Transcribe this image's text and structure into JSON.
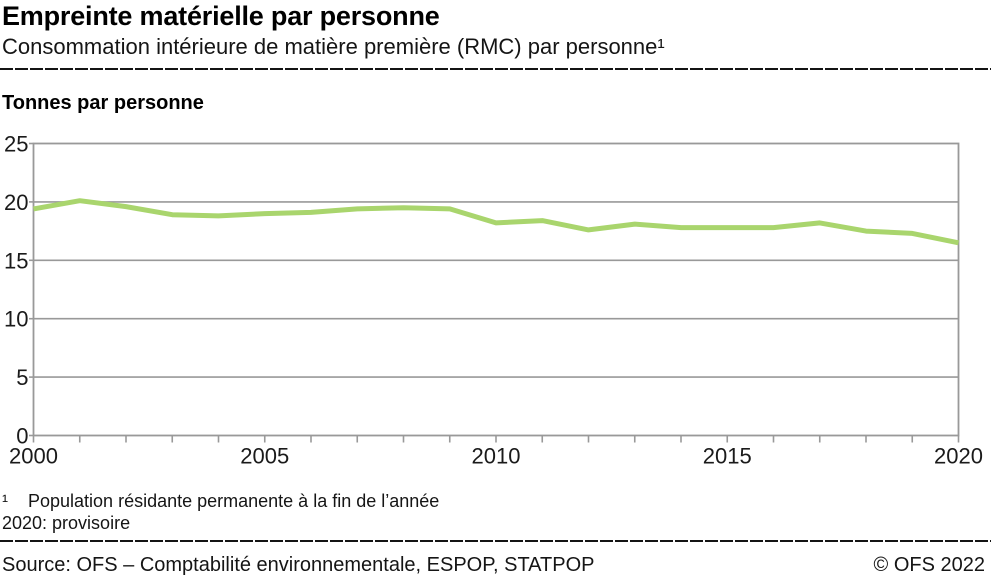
{
  "header": {
    "title": "Empreinte matérielle par personne",
    "subtitle": "Consommation intérieure de matière première (RMC) par personne¹"
  },
  "chart": {
    "axis_title": "Tonnes par personne"
  },
  "chart_data": {
    "type": "line",
    "title": "Empreinte matérielle par personne",
    "ylabel": "Tonnes par personne",
    "xlabel": "",
    "x": [
      2000,
      2001,
      2002,
      2003,
      2004,
      2005,
      2006,
      2007,
      2008,
      2009,
      2010,
      2011,
      2012,
      2013,
      2014,
      2015,
      2016,
      2017,
      2018,
      2019,
      2020
    ],
    "values": [
      19.4,
      20.1,
      19.6,
      18.9,
      18.8,
      19.0,
      19.1,
      19.4,
      19.5,
      19.4,
      18.2,
      18.4,
      17.6,
      18.1,
      17.8,
      17.8,
      17.8,
      18.2,
      17.5,
      17.3,
      16.5
    ],
    "x_range": [
      2000,
      2020
    ],
    "ylim": [
      0,
      25
    ],
    "y_ticks": [
      0,
      5,
      10,
      15,
      20,
      25
    ],
    "x_tick_labels": [
      2000,
      2005,
      2010,
      2015,
      2020
    ],
    "x_minor_tick_interval": 1,
    "legend": "none",
    "grid": "horizontal",
    "line_color": "#a9d56d",
    "grid_color": "#999999",
    "tick_label_color": "#1a1a1a"
  },
  "footnotes": {
    "marker": "¹",
    "line1": "Population résidante permanente à la fin de l’année",
    "line2": "2020: provisoire"
  },
  "footer": {
    "source": "Source: OFS – Comptabilité environnementale, ESPOP, STATPOP",
    "copyright": "© OFS 2022"
  }
}
